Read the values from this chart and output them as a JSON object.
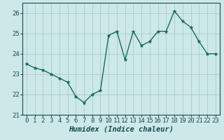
{
  "x": [
    0,
    1,
    2,
    3,
    4,
    5,
    6,
    7,
    8,
    9,
    10,
    11,
    12,
    13,
    14,
    15,
    16,
    17,
    18,
    19,
    20,
    21,
    22,
    23
  ],
  "y": [
    23.5,
    23.3,
    23.2,
    23.0,
    22.8,
    22.6,
    21.9,
    21.6,
    22.0,
    22.2,
    24.9,
    25.1,
    23.7,
    25.1,
    24.4,
    24.6,
    25.1,
    25.1,
    26.1,
    25.6,
    25.3,
    24.6,
    24.0,
    24.0
  ],
  "line_color": "#1a6b5a",
  "marker": "*",
  "marker_size": 3.5,
  "bg_color": "#cce8e8",
  "grid_color": "#aacccc",
  "xlabel": "Humidex (Indice chaleur)",
  "ylim": [
    21,
    26.5
  ],
  "xlim": [
    -0.5,
    23.5
  ],
  "yticks": [
    21,
    22,
    23,
    24,
    25,
    26
  ],
  "xticks": [
    0,
    1,
    2,
    3,
    4,
    5,
    6,
    7,
    8,
    9,
    10,
    11,
    12,
    13,
    14,
    15,
    16,
    17,
    18,
    19,
    20,
    21,
    22,
    23
  ],
  "tick_fontsize": 6.5,
  "xlabel_fontsize": 7.5,
  "line_width": 1.0
}
